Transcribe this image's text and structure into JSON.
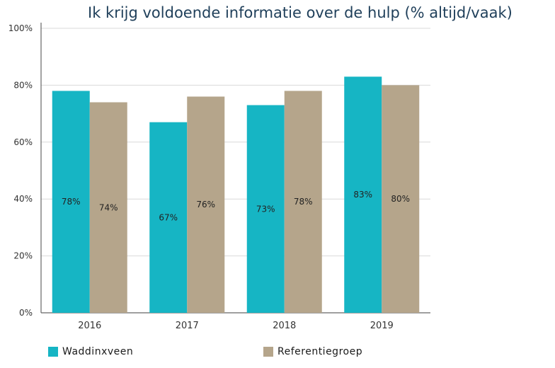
{
  "chart_data": {
    "type": "bar",
    "title": "Ik krijg voldoende informatie over de hulp (% altijd/vaak)",
    "categories": [
      "2016",
      "2017",
      "2018",
      "2019"
    ],
    "series": [
      {
        "name": "Waddinxveen",
        "values": [
          78,
          67,
          73,
          83
        ],
        "labels": [
          "78%",
          "67%",
          "73%",
          "83%"
        ],
        "color": "#16b5c4"
      },
      {
        "name": "Referentiegroep",
        "values": [
          74,
          76,
          78,
          80
        ],
        "labels": [
          "74%",
          "76%",
          "78%",
          "80%"
        ],
        "color": "#b5a58b"
      }
    ],
    "yticks": [
      "0%",
      "20%",
      "40%",
      "60%",
      "80%",
      "100%"
    ],
    "ylim": [
      0,
      100
    ],
    "grid": true,
    "legend": "bottom"
  }
}
